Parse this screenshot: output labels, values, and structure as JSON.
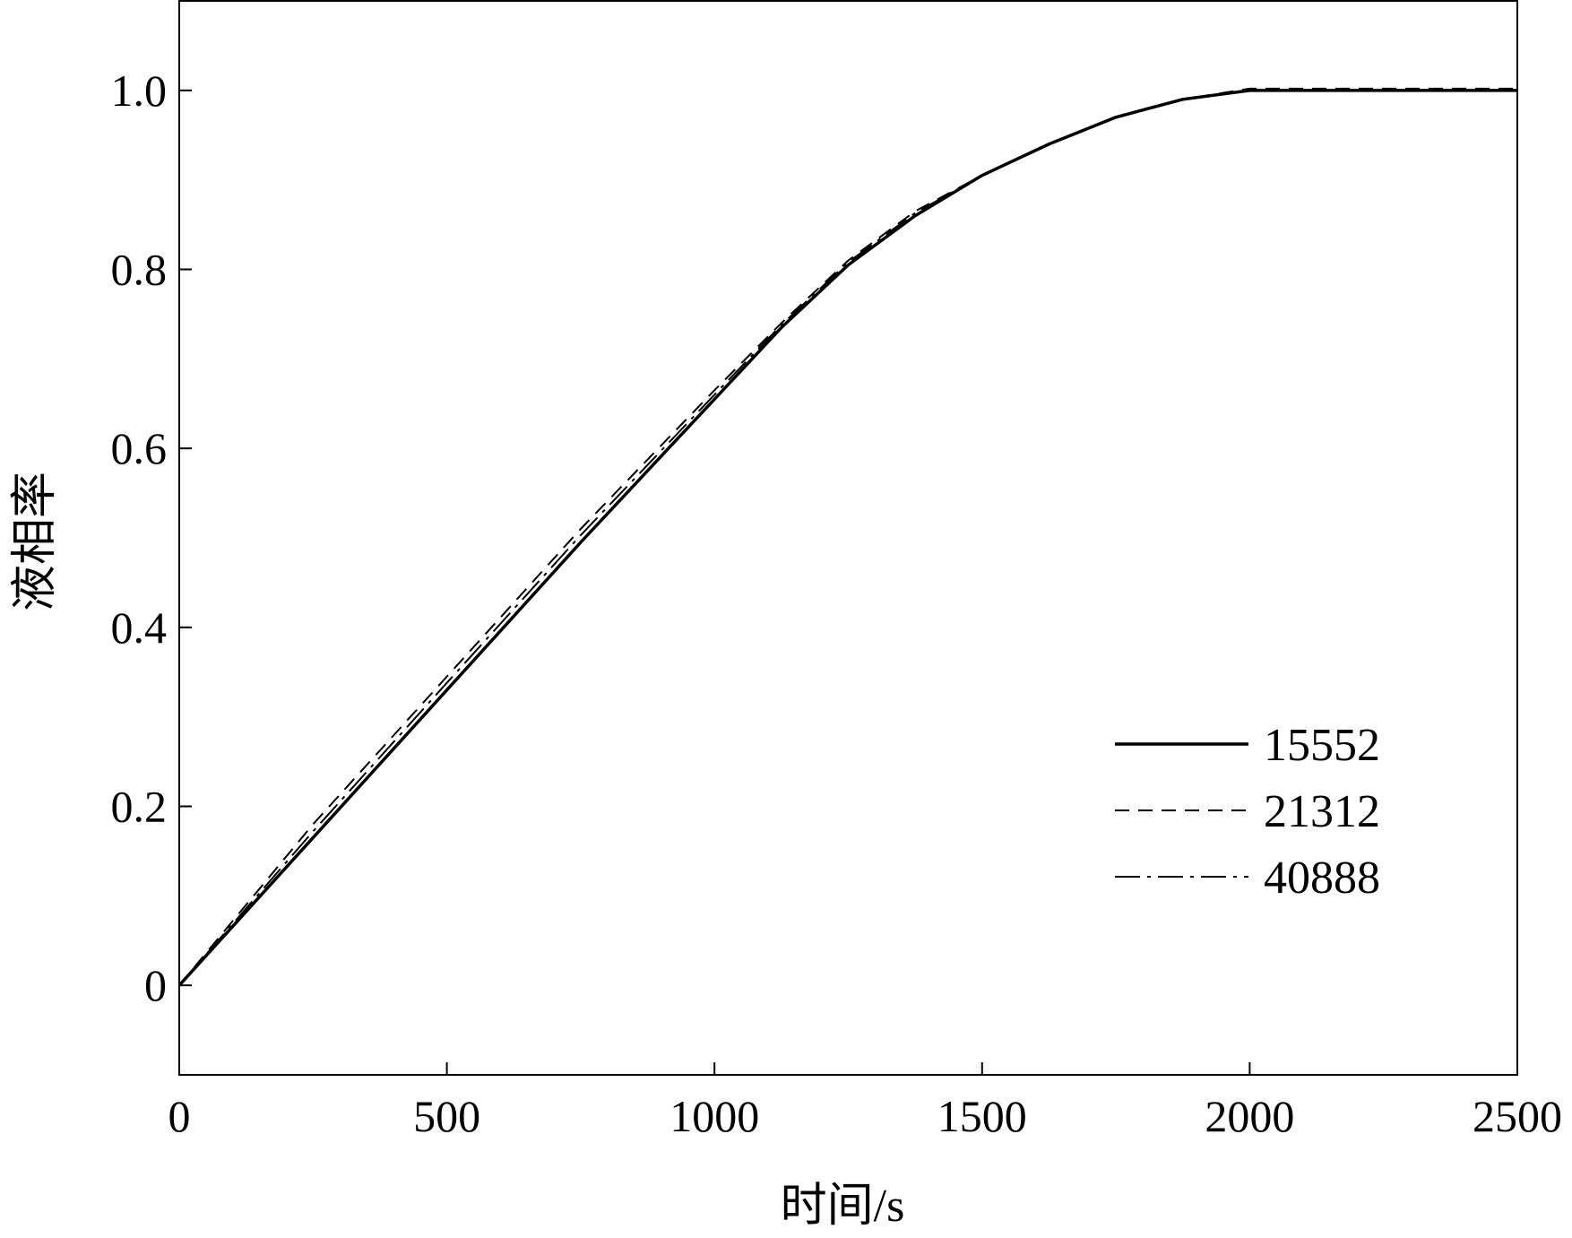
{
  "chart_data": {
    "type": "line",
    "title": "",
    "xlabel": "时间/s",
    "ylabel": "液相率",
    "xlim": [
      0,
      2500
    ],
    "ylim": [
      -0.1,
      1.1
    ],
    "xticks": [
      0,
      500,
      1000,
      1500,
      2000,
      2500
    ],
    "xtick_labels": [
      "0",
      "500",
      "1000",
      "1500",
      "2000",
      "2500"
    ],
    "yticks": [
      0,
      0.2,
      0.4,
      0.6,
      0.8,
      1.0
    ],
    "ytick_labels": [
      "0",
      "0.2",
      "0.4",
      "0.6",
      "0.8",
      "1.0"
    ],
    "grid": false,
    "legend_position": "lower-right",
    "series": [
      {
        "name": "15552",
        "style": "solid",
        "color": "#000000",
        "x": [
          0,
          250,
          500,
          750,
          1000,
          1125,
          1250,
          1375,
          1500,
          1625,
          1750,
          1875,
          2000,
          2250,
          2500
        ],
        "y": [
          0,
          0.165,
          0.33,
          0.495,
          0.655,
          0.735,
          0.805,
          0.86,
          0.905,
          0.94,
          0.97,
          0.99,
          1.0,
          1.0,
          1.0
        ]
      },
      {
        "name": "21312",
        "style": "dashed",
        "color": "#000000",
        "x": [
          0,
          250,
          500,
          750,
          1000,
          1125,
          1250,
          1375,
          1500,
          1625,
          1750,
          1875,
          2000,
          2250,
          2500
        ],
        "y": [
          0,
          0.18,
          0.345,
          0.51,
          0.665,
          0.74,
          0.81,
          0.865,
          0.905,
          0.94,
          0.97,
          0.99,
          1.002,
          1.002,
          1.002
        ]
      },
      {
        "name": "40888",
        "style": "dashdot",
        "color": "#000000",
        "x": [
          0,
          250,
          500,
          750,
          1000,
          1125,
          1250,
          1375,
          1500,
          1625,
          1750,
          1875,
          2000,
          2250,
          2500
        ],
        "y": [
          0,
          0.172,
          0.338,
          0.503,
          0.66,
          0.738,
          0.808,
          0.863,
          0.905,
          0.94,
          0.97,
          0.99,
          1.0,
          1.0,
          1.0
        ]
      }
    ]
  }
}
